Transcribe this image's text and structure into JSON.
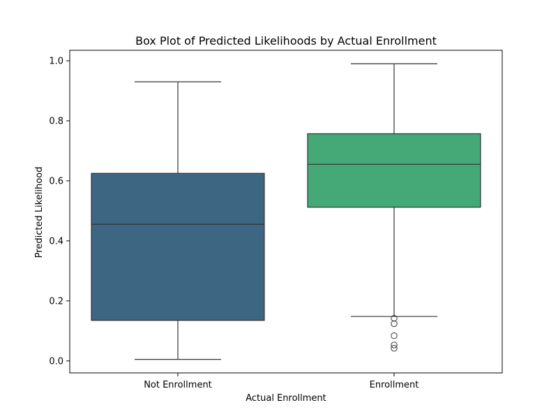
{
  "chart_data": {
    "type": "box",
    "title": "Box Plot of Predicted Likelihoods by Actual Enrollment",
    "xlabel": "Actual Enrollment",
    "ylabel": "Predicted Likelihood",
    "ylim": [
      -0.04,
      1.035
    ],
    "yticks": [
      0.0,
      0.2,
      0.4,
      0.6,
      0.8,
      1.0
    ],
    "ytick_labels": [
      "0.0",
      "0.2",
      "0.4",
      "0.6",
      "0.8",
      "1.0"
    ],
    "grid": false,
    "categories": [
      "Not Enrollment",
      "Enrollment"
    ],
    "boxes": [
      {
        "category": "Not Enrollment",
        "whisker_low": 0.005,
        "q1": 0.135,
        "median": 0.455,
        "q3": 0.625,
        "whisker_high": 0.93,
        "outliers": [],
        "color": "#3d6683"
      },
      {
        "category": "Enrollment",
        "whisker_low": 0.148,
        "q1": 0.512,
        "median": 0.655,
        "q3": 0.757,
        "whisker_high": 0.99,
        "outliers": [
          0.142,
          0.124,
          0.084,
          0.053,
          0.042
        ],
        "color": "#44a877"
      }
    ]
  }
}
